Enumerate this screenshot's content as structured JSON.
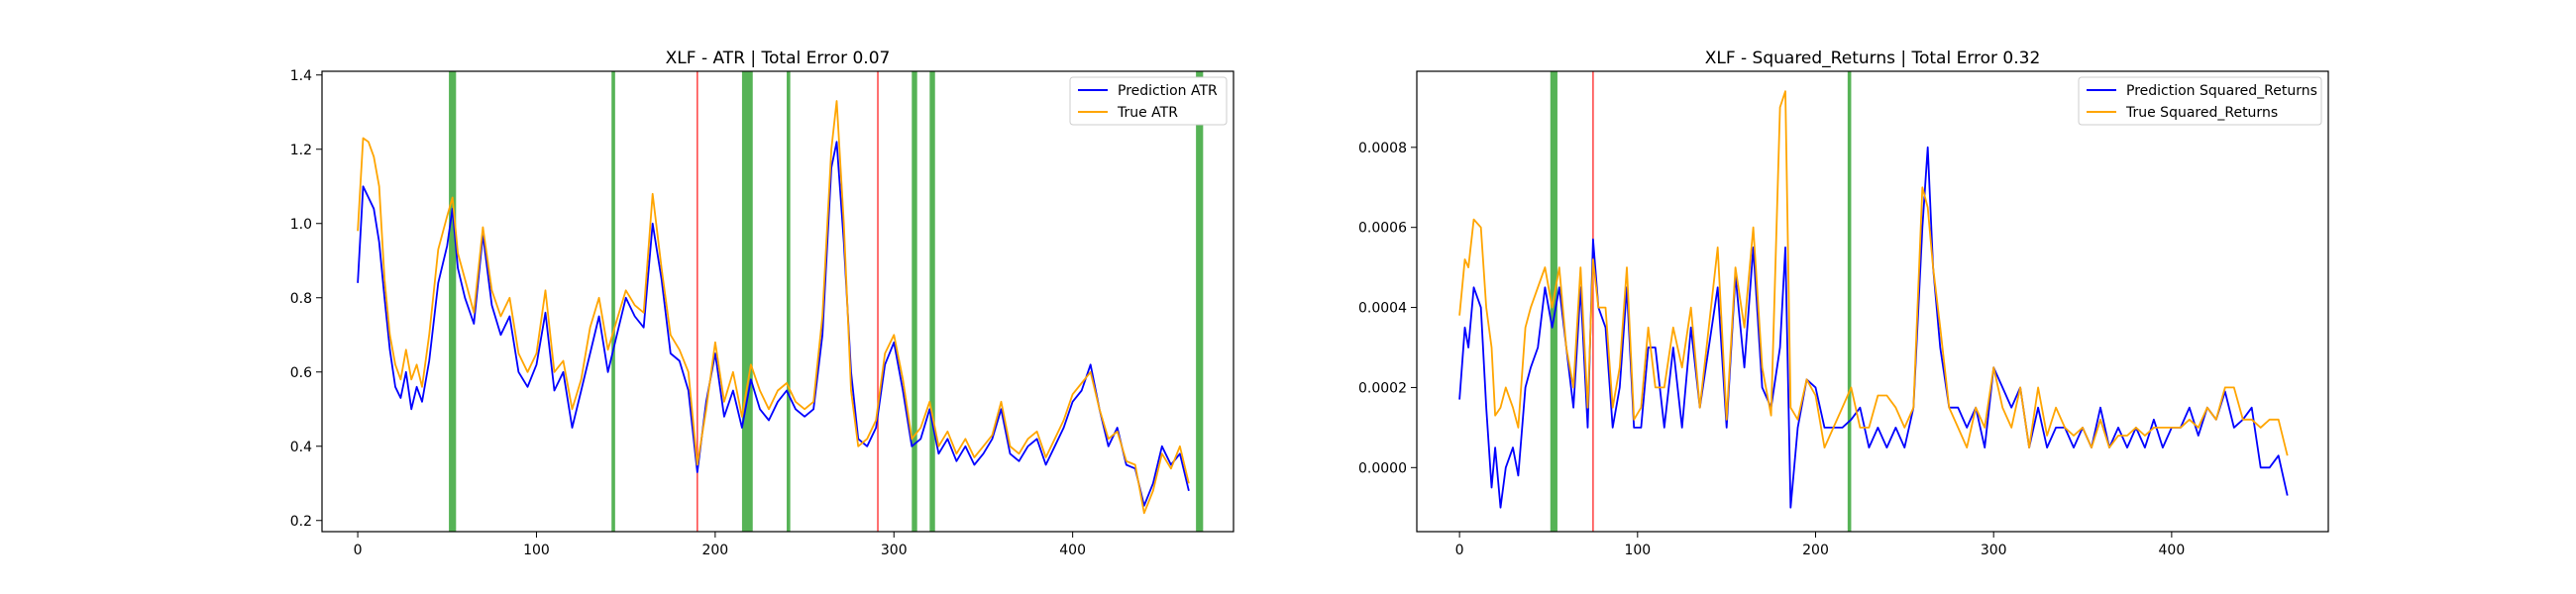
{
  "chart_data": [
    {
      "type": "line",
      "title": "XLF - ATR | Total Error 0.07",
      "xlabel": "",
      "ylabel": "",
      "xlim": [
        -20,
        490
      ],
      "ylim": [
        0.17,
        1.41
      ],
      "xticks": [
        0,
        100,
        200,
        300,
        400
      ],
      "yticks": [
        0.2,
        0.4,
        0.6,
        0.8,
        1.0,
        1.2,
        1.4
      ],
      "ytick_labels": [
        "0.2",
        "0.4",
        "0.6",
        "0.8",
        "1.0",
        "1.2",
        "1.4"
      ],
      "grid": false,
      "legend_position": "top-right",
      "green_bands": [
        [
          51,
          55
        ],
        [
          142,
          144
        ],
        [
          215,
          221
        ],
        [
          240,
          242
        ],
        [
          310,
          313
        ],
        [
          320,
          323
        ],
        [
          469,
          473
        ]
      ],
      "red_lines": [
        190,
        291
      ],
      "series": [
        {
          "name": "Prediction ATR",
          "color": "#0000ff",
          "x": [
            0,
            3,
            6,
            9,
            12,
            15,
            18,
            21,
            24,
            27,
            30,
            33,
            36,
            40,
            45,
            50,
            53,
            56,
            60,
            65,
            70,
            75,
            80,
            85,
            90,
            95,
            100,
            105,
            110,
            115,
            120,
            125,
            130,
            135,
            140,
            145,
            150,
            155,
            160,
            165,
            170,
            175,
            180,
            185,
            190,
            195,
            200,
            205,
            210,
            215,
            220,
            225,
            230,
            235,
            240,
            245,
            250,
            255,
            260,
            265,
            268,
            272,
            276,
            280,
            285,
            290,
            295,
            300,
            305,
            310,
            315,
            320,
            325,
            330,
            335,
            340,
            345,
            350,
            355,
            360,
            365,
            370,
            375,
            380,
            385,
            390,
            395,
            400,
            405,
            410,
            415,
            420,
            425,
            430,
            435,
            440,
            445,
            450,
            455,
            460,
            465
          ],
          "y": [
            0.84,
            1.1,
            1.07,
            1.04,
            0.95,
            0.8,
            0.66,
            0.56,
            0.53,
            0.6,
            0.5,
            0.56,
            0.52,
            0.63,
            0.84,
            0.94,
            1.04,
            0.88,
            0.8,
            0.73,
            0.97,
            0.78,
            0.7,
            0.75,
            0.6,
            0.56,
            0.62,
            0.76,
            0.55,
            0.6,
            0.45,
            0.55,
            0.65,
            0.75,
            0.6,
            0.7,
            0.8,
            0.75,
            0.72,
            1.0,
            0.85,
            0.65,
            0.63,
            0.55,
            0.33,
            0.52,
            0.65,
            0.48,
            0.55,
            0.45,
            0.58,
            0.5,
            0.47,
            0.52,
            0.55,
            0.5,
            0.48,
            0.5,
            0.7,
            1.15,
            1.22,
            0.95,
            0.6,
            0.42,
            0.4,
            0.45,
            0.62,
            0.68,
            0.55,
            0.4,
            0.42,
            0.5,
            0.38,
            0.42,
            0.36,
            0.4,
            0.35,
            0.38,
            0.42,
            0.5,
            0.38,
            0.36,
            0.4,
            0.42,
            0.35,
            0.4,
            0.45,
            0.52,
            0.55,
            0.62,
            0.5,
            0.4,
            0.45,
            0.35,
            0.34,
            0.24,
            0.3,
            0.4,
            0.35,
            0.38,
            0.28
          ]
        },
        {
          "name": "True ATR",
          "color": "#ffa500",
          "x": [
            0,
            3,
            6,
            9,
            12,
            15,
            18,
            21,
            24,
            27,
            30,
            33,
            36,
            40,
            45,
            50,
            53,
            56,
            60,
            65,
            70,
            75,
            80,
            85,
            90,
            95,
            100,
            105,
            110,
            115,
            120,
            125,
            130,
            135,
            140,
            145,
            150,
            155,
            160,
            165,
            170,
            175,
            180,
            185,
            190,
            195,
            200,
            205,
            210,
            215,
            220,
            225,
            230,
            235,
            240,
            245,
            250,
            255,
            260,
            265,
            268,
            272,
            276,
            280,
            285,
            290,
            295,
            300,
            305,
            310,
            315,
            320,
            325,
            330,
            335,
            340,
            345,
            350,
            355,
            360,
            365,
            370,
            375,
            380,
            385,
            390,
            395,
            400,
            405,
            410,
            415,
            420,
            425,
            430,
            435,
            440,
            445,
            450,
            455,
            460,
            465
          ],
          "y": [
            0.98,
            1.23,
            1.22,
            1.18,
            1.1,
            0.85,
            0.7,
            0.62,
            0.58,
            0.66,
            0.58,
            0.62,
            0.56,
            0.7,
            0.93,
            1.02,
            1.07,
            0.92,
            0.85,
            0.76,
            0.99,
            0.82,
            0.75,
            0.8,
            0.65,
            0.6,
            0.65,
            0.82,
            0.6,
            0.63,
            0.5,
            0.58,
            0.72,
            0.8,
            0.66,
            0.74,
            0.82,
            0.78,
            0.76,
            1.08,
            0.88,
            0.7,
            0.66,
            0.6,
            0.35,
            0.5,
            0.68,
            0.52,
            0.6,
            0.48,
            0.62,
            0.55,
            0.5,
            0.55,
            0.57,
            0.52,
            0.5,
            0.52,
            0.75,
            1.2,
            1.33,
            1.0,
            0.55,
            0.4,
            0.42,
            0.47,
            0.65,
            0.7,
            0.58,
            0.42,
            0.45,
            0.52,
            0.4,
            0.44,
            0.38,
            0.42,
            0.37,
            0.4,
            0.43,
            0.52,
            0.4,
            0.38,
            0.42,
            0.44,
            0.37,
            0.42,
            0.47,
            0.54,
            0.57,
            0.6,
            0.5,
            0.42,
            0.44,
            0.36,
            0.35,
            0.22,
            0.28,
            0.38,
            0.34,
            0.4,
            0.3
          ]
        }
      ]
    },
    {
      "type": "line",
      "title": "XLF - Squared_Returns | Total Error 0.32",
      "xlabel": "",
      "ylabel": "",
      "xlim": [
        -24,
        488
      ],
      "ylim": [
        -0.00016,
        0.00099
      ],
      "xticks": [
        0,
        100,
        200,
        300,
        400
      ],
      "yticks": [
        0.0,
        0.0002,
        0.0004,
        0.0006,
        0.0008
      ],
      "ytick_labels": [
        "0.0000",
        "0.0002",
        "0.0004",
        "0.0006",
        "0.0008"
      ],
      "grid": false,
      "legend_position": "top-right",
      "green_bands": [
        [
          51,
          55
        ],
        [
          218,
          220
        ]
      ],
      "red_lines": [
        75
      ],
      "series": [
        {
          "name": "Prediction Squared_Returns",
          "color": "#0000ff",
          "x": [
            0,
            3,
            5,
            8,
            12,
            15,
            18,
            20,
            23,
            26,
            30,
            33,
            37,
            40,
            44,
            48,
            52,
            56,
            60,
            64,
            68,
            72,
            75,
            78,
            82,
            86,
            90,
            94,
            98,
            102,
            106,
            110,
            115,
            120,
            125,
            130,
            135,
            140,
            145,
            150,
            155,
            160,
            165,
            170,
            175,
            180,
            183,
            186,
            190,
            195,
            200,
            205,
            210,
            215,
            220,
            225,
            230,
            235,
            240,
            245,
            250,
            255,
            260,
            263,
            266,
            270,
            275,
            280,
            285,
            290,
            295,
            300,
            305,
            310,
            315,
            320,
            325,
            330,
            335,
            340,
            345,
            350,
            355,
            360,
            365,
            370,
            375,
            380,
            385,
            390,
            395,
            400,
            405,
            410,
            415,
            420,
            425,
            430,
            435,
            440,
            445,
            450,
            455,
            460,
            465
          ],
          "y": [
            0.00017,
            0.00035,
            0.0003,
            0.00045,
            0.0004,
            0.00015,
            -5e-05,
            5e-05,
            -0.0001,
            0.0,
            5e-05,
            -2e-05,
            0.0002,
            0.00025,
            0.0003,
            0.00045,
            0.00035,
            0.00045,
            0.0003,
            0.00015,
            0.00045,
            0.0001,
            0.00057,
            0.0004,
            0.00035,
            0.0001,
            0.0002,
            0.00045,
            0.0001,
            0.0001,
            0.0003,
            0.0003,
            0.0001,
            0.0003,
            0.0001,
            0.00035,
            0.00015,
            0.0003,
            0.00045,
            0.0001,
            0.00048,
            0.00025,
            0.00055,
            0.0002,
            0.00015,
            0.0003,
            0.00055,
            -0.0001,
            0.0001,
            0.00022,
            0.0002,
            0.0001,
            0.0001,
            0.0001,
            0.00012,
            0.00015,
            5e-05,
            0.0001,
            5e-05,
            0.0001,
            5e-05,
            0.00015,
            0.0006,
            0.0008,
            0.0005,
            0.0003,
            0.00015,
            0.00015,
            0.0001,
            0.00015,
            5e-05,
            0.00025,
            0.0002,
            0.00015,
            0.0002,
            5e-05,
            0.00015,
            5e-05,
            0.0001,
            0.0001,
            5e-05,
            0.0001,
            5e-05,
            0.00015,
            5e-05,
            0.0001,
            5e-05,
            0.0001,
            5e-05,
            0.00012,
            5e-05,
            0.0001,
            0.0001,
            0.00015,
            8e-05,
            0.00015,
            0.00012,
            0.00019,
            0.0001,
            0.00012,
            0.00015,
            0.0,
            0.0,
            3e-05,
            -7e-05
          ]
        },
        {
          "name": "True Squared_Returns",
          "color": "#ffa500",
          "x": [
            0,
            3,
            5,
            8,
            12,
            15,
            18,
            20,
            23,
            26,
            30,
            33,
            37,
            40,
            44,
            48,
            52,
            56,
            60,
            64,
            68,
            72,
            75,
            78,
            82,
            86,
            90,
            94,
            98,
            102,
            106,
            110,
            115,
            120,
            125,
            130,
            135,
            140,
            145,
            150,
            155,
            160,
            165,
            170,
            175,
            180,
            183,
            186,
            190,
            195,
            200,
            205,
            210,
            215,
            220,
            225,
            230,
            235,
            240,
            245,
            250,
            255,
            260,
            263,
            266,
            270,
            275,
            280,
            285,
            290,
            295,
            300,
            305,
            310,
            315,
            320,
            325,
            330,
            335,
            340,
            345,
            350,
            355,
            360,
            365,
            370,
            375,
            380,
            385,
            390,
            395,
            400,
            405,
            410,
            415,
            420,
            425,
            430,
            435,
            440,
            445,
            450,
            455,
            460,
            465
          ],
          "y": [
            0.00038,
            0.00052,
            0.0005,
            0.00062,
            0.0006,
            0.0004,
            0.0003,
            0.00013,
            0.00015,
            0.0002,
            0.00015,
            0.0001,
            0.00035,
            0.0004,
            0.00045,
            0.0005,
            0.0004,
            0.0005,
            0.0003,
            0.0002,
            0.0005,
            0.00015,
            0.00052,
            0.0004,
            0.0004,
            0.00015,
            0.00025,
            0.0005,
            0.00012,
            0.00015,
            0.00035,
            0.0002,
            0.0002,
            0.00035,
            0.00025,
            0.0004,
            0.00015,
            0.00035,
            0.00055,
            0.00012,
            0.0005,
            0.00035,
            0.0006,
            0.00025,
            0.00013,
            0.0009,
            0.00094,
            0.00015,
            0.00012,
            0.00022,
            0.00018,
            5e-05,
            0.0001,
            0.00015,
            0.0002,
            0.0001,
            0.0001,
            0.00018,
            0.00018,
            0.00015,
            0.0001,
            0.00015,
            0.0007,
            0.00065,
            0.0005,
            0.00035,
            0.00015,
            0.0001,
            5e-05,
            0.00015,
            0.0001,
            0.00025,
            0.00015,
            0.0001,
            0.0002,
            5e-05,
            0.0002,
            8e-05,
            0.00015,
            0.0001,
            8e-05,
            0.0001,
            5e-05,
            0.00012,
            5e-05,
            8e-05,
            8e-05,
            0.0001,
            8e-05,
            0.0001,
            0.0001,
            0.0001,
            0.0001,
            0.00012,
            0.0001,
            0.00015,
            0.00012,
            0.0002,
            0.0002,
            0.00012,
            0.00012,
            0.0001,
            0.00012,
            0.00012,
            3e-05
          ]
        }
      ]
    }
  ]
}
